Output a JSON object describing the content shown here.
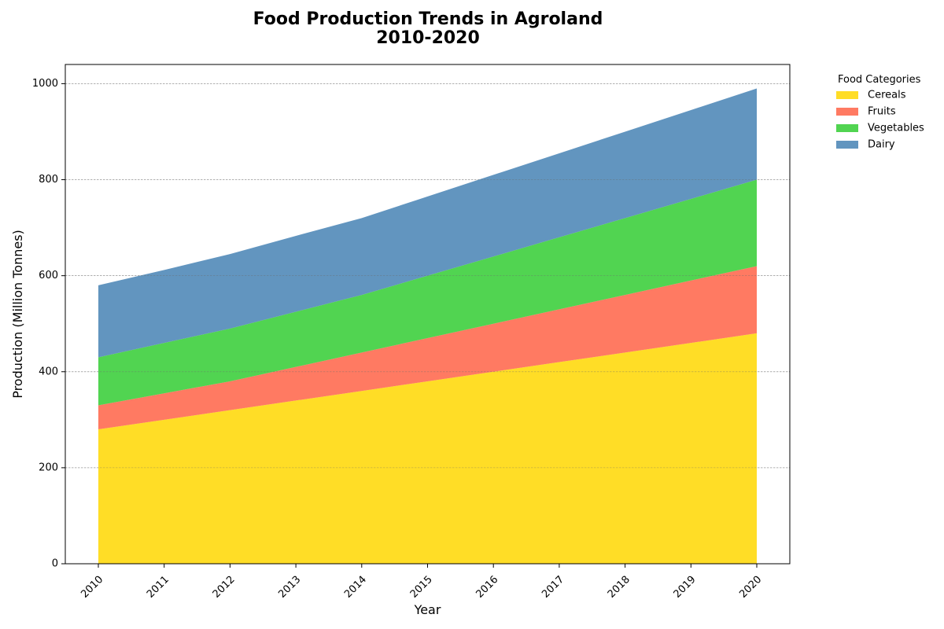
{
  "chart_data": {
    "type": "area",
    "stacked": true,
    "title": "Food Production Trends in Agroland\n2010-2020",
    "xlabel": "Year",
    "ylabel": "Production (Million Tonnes)",
    "x": [
      2010,
      2011,
      2012,
      2013,
      2014,
      2015,
      2016,
      2017,
      2018,
      2019,
      2020
    ],
    "ylim": [
      0,
      1040
    ],
    "yticks": [
      0,
      200,
      400,
      600,
      800,
      1000
    ],
    "grid": "y-dashed",
    "legend": {
      "title": "Food Categories",
      "placement": "outside-top-right"
    },
    "series": [
      {
        "name": "Cereals",
        "color": "#FFD700",
        "values": [
          280,
          300,
          320,
          340,
          360,
          380,
          400,
          420,
          440,
          460,
          480
        ]
      },
      {
        "name": "Fruits",
        "color": "#FF6347",
        "values": [
          50,
          55,
          60,
          70,
          80,
          90,
          100,
          110,
          120,
          130,
          140
        ]
      },
      {
        "name": "Vegetables",
        "color": "#32CD32",
        "values": [
          100,
          105,
          110,
          115,
          120,
          130,
          140,
          150,
          160,
          170,
          180
        ]
      },
      {
        "name": "Dairy",
        "color": "#4682B4",
        "values": [
          150,
          152,
          155,
          158,
          160,
          165,
          170,
          175,
          180,
          185,
          190
        ]
      }
    ]
  }
}
